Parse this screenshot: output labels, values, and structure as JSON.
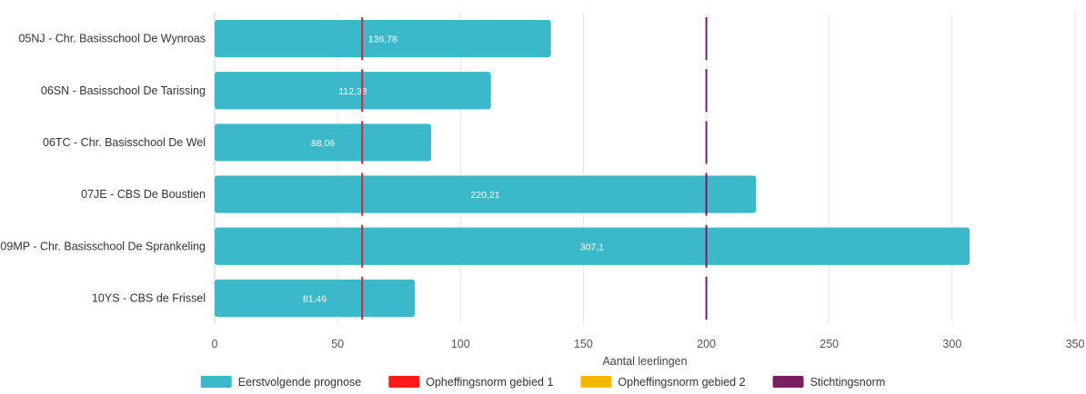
{
  "chart_data": {
    "type": "bar",
    "orientation": "horizontal",
    "categories": [
      "05NJ - Chr. Basisschool De Wynroas",
      "06SN - Basisschool De Tarissing",
      "06TC - Chr. Basisschool De Wel",
      "07JE - CBS De Boustien",
      "09MP - Chr. Basisschool De Sprankeling",
      "10YS - CBS de Frissel"
    ],
    "series": [
      {
        "name": "Eerstvolgende prognose",
        "color": "#3bb8c9",
        "values": [
          136.78,
          112.38,
          88.06,
          220.21,
          307.1,
          81.46
        ],
        "labels": [
          "136,78",
          "112,38",
          "88,06",
          "220,21",
          "307,1",
          "81,46"
        ]
      }
    ],
    "reference_lines": [
      {
        "name": "Opheffingsnorm gebied 1",
        "color": "#d42a2a",
        "values": [
          60,
          60,
          60,
          60,
          60,
          60
        ]
      },
      {
        "name": "Opheffingsnorm gebied 2",
        "color": "#f5b800",
        "values": []
      },
      {
        "name": "Stichtingsnorm",
        "color": "#7a1f63",
        "values": [
          200,
          200,
          200,
          200,
          200,
          200
        ]
      }
    ],
    "legend": [
      {
        "name": "Eerstvolgende prognose",
        "color": "#3bb8c9"
      },
      {
        "name": "Opheffingsnorm gebied 1",
        "color": "#ff1a1a"
      },
      {
        "name": "Opheffingsnorm gebied 2",
        "color": "#f5b800"
      },
      {
        "name": "Stichtingsnorm",
        "color": "#7a1f63"
      }
    ],
    "xlabel": "Aantal leerlingen",
    "xlim": [
      0,
      350
    ],
    "xticks": [
      0,
      50,
      100,
      150,
      200,
      250,
      300,
      350
    ],
    "grid": true,
    "legend_position": "bottom"
  }
}
